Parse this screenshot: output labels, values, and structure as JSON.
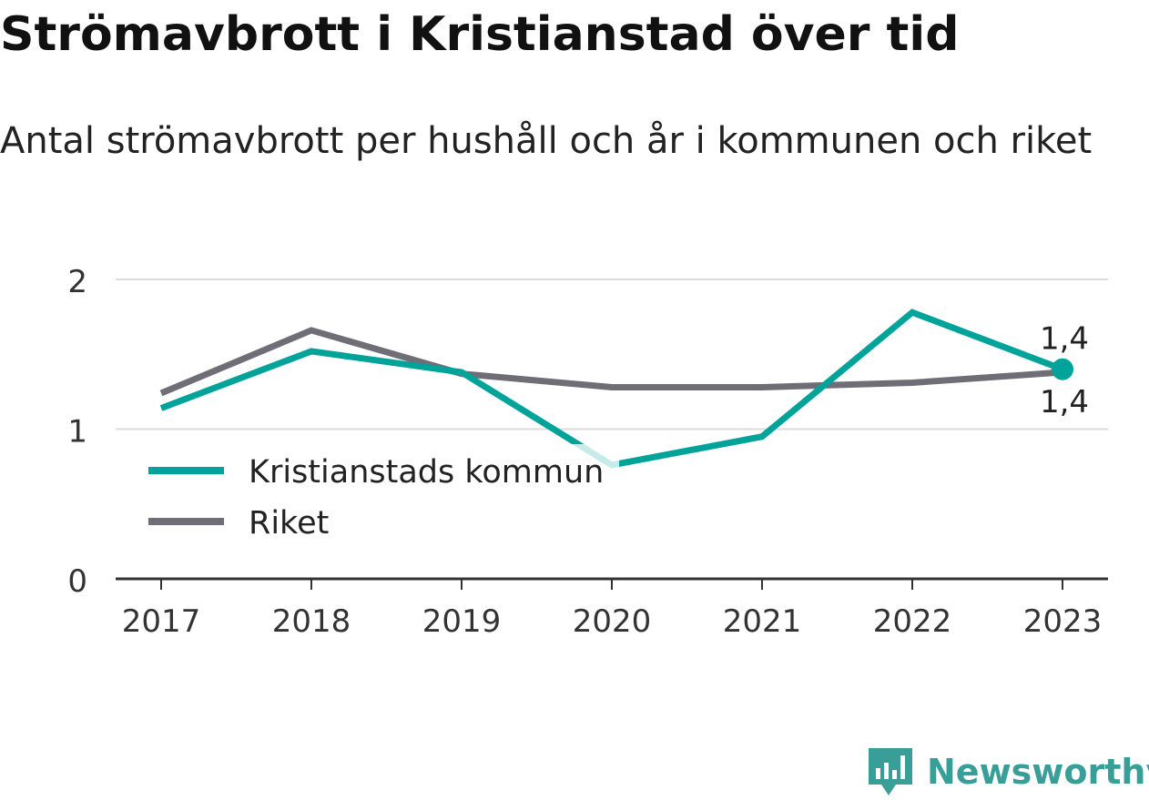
{
  "title": "Strömavbrott i Kristianstad över tid",
  "subtitle": "Antal strömavbrott per hushåll och år i kommunen och riket",
  "brand": {
    "name": "Newsworthy",
    "icon": "newsworthy-logo-icon"
  },
  "colors": {
    "kommun": "#00a39a",
    "riket": "#6f6e77",
    "grid": "#dcdcdc",
    "axis": "#333333"
  },
  "chart_data": {
    "type": "line",
    "x": [
      "2017",
      "2018",
      "2019",
      "2020",
      "2021",
      "2022",
      "2023"
    ],
    "ylim": [
      0,
      2
    ],
    "yticks": [
      "0",
      "1",
      "2"
    ],
    "grid": true,
    "legend_position": "left-center",
    "series": [
      {
        "name": "Kristianstads kommun",
        "values": [
          1.14,
          1.52,
          1.38,
          0.76,
          0.95,
          1.78,
          1.4
        ],
        "end_label": "1,4"
      },
      {
        "name": "Riket",
        "values": [
          1.24,
          1.66,
          1.37,
          1.28,
          1.28,
          1.31,
          1.38
        ],
        "end_label": "1,4"
      }
    ]
  }
}
